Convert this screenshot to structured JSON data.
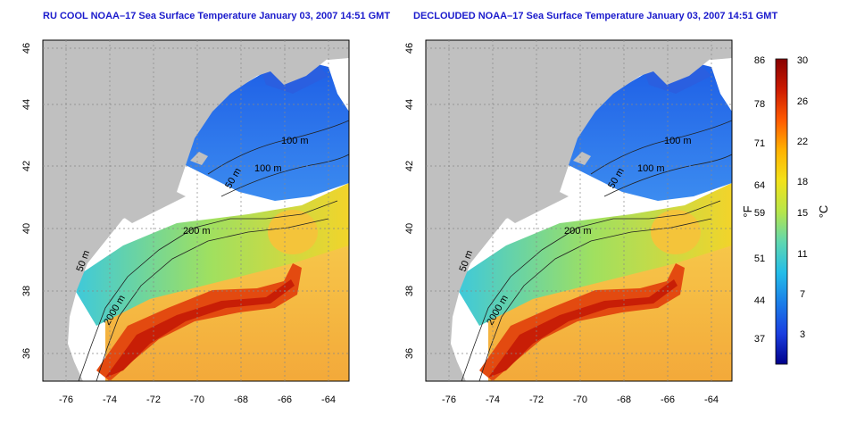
{
  "titles": {
    "left": "RU COOL NOAA–17 Sea Surface Temperature January 03, 2007 14:51 GMT",
    "right": "DECLOUDED NOAA–17 Sea Surface Temperature January 03, 2007 14:51 GMT"
  },
  "axes": {
    "lat_ticks": [
      "46",
      "44",
      "42",
      "40",
      "38",
      "36"
    ],
    "lon_ticks": [
      "-76",
      "-74",
      "-72",
      "-70",
      "-68",
      "-66",
      "-64"
    ]
  },
  "contour_labels": {
    "left": [
      "100 m",
      "100 m",
      "50 m",
      "200 m",
      "50 m",
      "2000 m"
    ],
    "right": [
      "100 m",
      "100 m",
      "50 m",
      "200 m",
      "50 m",
      "2000 m"
    ]
  },
  "colorbar": {
    "fahrenheit_ticks": [
      "86",
      "78",
      "71",
      "64",
      "59",
      "51",
      "44",
      "37"
    ],
    "celsius_ticks": [
      "30",
      "26",
      "22",
      "18",
      "15",
      "11",
      "7",
      "3"
    ],
    "fahrenheit_unit": "°F",
    "celsius_unit": "°C",
    "stops": [
      "#880000",
      "#cc1a00",
      "#ff5a00",
      "#ffb300",
      "#f2e21a",
      "#b7e64a",
      "#5fd7b0",
      "#23bde8",
      "#1a7de8",
      "#1a3ee0",
      "#00008a"
    ]
  },
  "colors": {
    "land": "#c0c0c0",
    "cloud": "#ffffff",
    "cold": "#2a6ae8",
    "gulf_stream": "#e63c0a",
    "warm_sea": "#f5b43c",
    "title": "#1a1acc"
  }
}
